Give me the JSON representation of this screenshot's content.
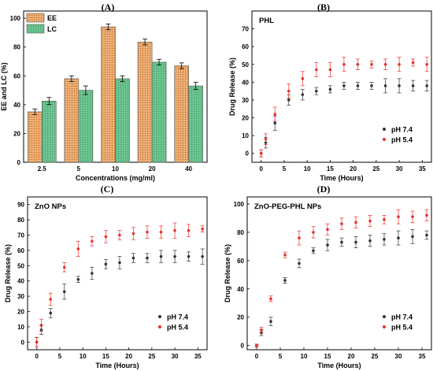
{
  "chart_data": [
    {
      "panel": "(A)",
      "type": "bar",
      "title": "",
      "xlabel": "Concentrations (mg/ml)",
      "ylabel": "EE and LC (%)",
      "categories": [
        "2.5",
        "5",
        "10",
        "20",
        "40"
      ],
      "ylim": [
        0,
        105
      ],
      "yticks": [
        "0",
        "20",
        "40",
        "60",
        "80",
        "100"
      ],
      "legend_position": "top-left",
      "series": [
        {
          "name": "EE",
          "values": [
            35,
            58,
            94,
            83.5,
            67
          ],
          "errors": [
            2,
            2,
            2,
            2,
            2
          ],
          "color": "#f0b27a",
          "pattern": "dots"
        },
        {
          "name": "LC",
          "values": [
            42.5,
            50,
            58,
            69.5,
            53
          ],
          "errors": [
            2.5,
            3,
            2,
            2,
            2.5
          ],
          "color": "#74c996",
          "pattern": "grid"
        }
      ],
      "grid": false
    },
    {
      "panel": "(B)",
      "type": "scatter",
      "title": "PHL",
      "xlabel": "Time (Hours)",
      "ylabel": "Drug Release (%)",
      "xlim": [
        -2,
        37
      ],
      "ylim": [
        -5,
        80
      ],
      "xticks": [
        "0",
        "5",
        "10",
        "15",
        "20",
        "25",
        "30",
        "35"
      ],
      "yticks": [
        "0",
        "10",
        "20",
        "30",
        "40",
        "50",
        "60",
        "70"
      ],
      "legend_position": "bottom-right",
      "x": [
        0,
        1,
        3,
        6,
        9,
        12,
        15,
        18,
        21,
        24,
        27,
        30,
        33,
        36
      ],
      "series": [
        {
          "name": "pH 7.4",
          "color": "#333333",
          "values": [
            0,
            6,
            17,
            30,
            33,
            35,
            36,
            38,
            38,
            38,
            38,
            38,
            38,
            38
          ],
          "errors": [
            2,
            3,
            4,
            3,
            3,
            2,
            2,
            2,
            2,
            2,
            4,
            4,
            3,
            3
          ]
        },
        {
          "name": "pH 5.4",
          "color": "#e8312a",
          "values": [
            0,
            8,
            22,
            35,
            42,
            47,
            47,
            50,
            50,
            50,
            50,
            50,
            51,
            50
          ],
          "errors": [
            2,
            3,
            4,
            4,
            4,
            4,
            4,
            4,
            3,
            2,
            3,
            4,
            2,
            4
          ]
        }
      ],
      "grid": false
    },
    {
      "panel": "(C)",
      "type": "scatter",
      "title": "ZnO NPs",
      "xlabel": "Time (Hours)",
      "ylabel": "Drug Release (%)",
      "xlim": [
        -2,
        37
      ],
      "ylim": [
        -5,
        95
      ],
      "xticks": [
        "0",
        "5",
        "10",
        "15",
        "20",
        "25",
        "30",
        "35"
      ],
      "yticks": [
        "0",
        "10",
        "20",
        "30",
        "40",
        "50",
        "60",
        "70",
        "80",
        "90"
      ],
      "legend_position": "bottom-right",
      "x": [
        0,
        1,
        3,
        6,
        9,
        12,
        15,
        18,
        21,
        24,
        27,
        30,
        33,
        36
      ],
      "series": [
        {
          "name": "pH 7.4",
          "color": "#333333",
          "values": [
            0,
            8,
            19,
            33,
            41,
            45,
            51,
            52,
            55,
            55,
            56,
            56,
            56,
            56
          ],
          "errors": [
            3,
            3,
            3,
            5,
            2,
            4,
            3,
            4,
            3,
            3,
            4,
            4,
            3,
            5
          ]
        },
        {
          "name": "pH 5.4",
          "color": "#e8312a",
          "values": [
            0,
            11,
            28,
            49,
            61,
            66,
            69,
            70,
            71,
            72,
            72,
            73,
            73,
            74
          ],
          "errors": [
            3,
            4,
            4,
            3,
            5,
            3,
            4,
            3,
            4,
            4,
            4,
            5,
            4,
            2
          ]
        }
      ],
      "grid": false
    },
    {
      "panel": "(D)",
      "type": "scatter",
      "title": "ZnO-PEG-PHL NPs",
      "xlabel": "Time (Hours)",
      "ylabel": "Drug Release (%)",
      "xlim": [
        -2,
        37
      ],
      "ylim": [
        -3,
        105
      ],
      "xticks": [
        "0",
        "5",
        "10",
        "15",
        "20",
        "25",
        "30",
        "35"
      ],
      "yticks": [
        "0",
        "20",
        "40",
        "60",
        "80",
        "100"
      ],
      "legend_position": "bottom-right",
      "x": [
        0,
        1,
        3,
        6,
        9,
        12,
        15,
        18,
        21,
        24,
        27,
        30,
        33,
        36
      ],
      "series": [
        {
          "name": "pH 7.4",
          "color": "#333333",
          "values": [
            0,
            9,
            17,
            46,
            58,
            67,
            71,
            73,
            73,
            74,
            75,
            76,
            77,
            78
          ],
          "errors": [
            1,
            2,
            3,
            2,
            3,
            2,
            4,
            3,
            4,
            4,
            4,
            5,
            5,
            3
          ]
        },
        {
          "name": "pH 5.4",
          "color": "#e8312a",
          "values": [
            0,
            11,
            33,
            64,
            76,
            80,
            82,
            86,
            87,
            88,
            89,
            91,
            91,
            92
          ],
          "errors": [
            1,
            2,
            2,
            2,
            5,
            4,
            4,
            4,
            4,
            4,
            3,
            5,
            4,
            4
          ]
        }
      ],
      "grid": false
    }
  ]
}
